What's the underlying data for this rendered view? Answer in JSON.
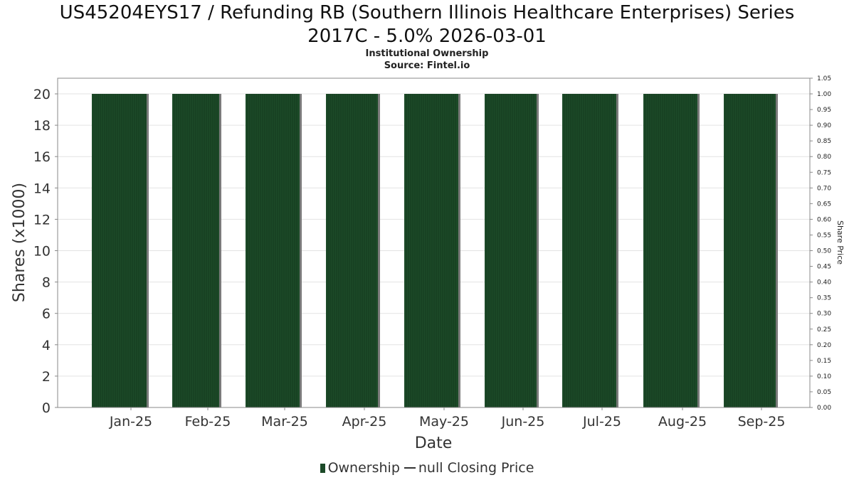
{
  "chart": {
    "title_line1": "US45204EYS17 / Refunding RB (Southern Illinois Healthcare Enterprises) Series",
    "title_line2": "2017C - 5.0% 2026-03-01",
    "subtitle_line1": "Institutional Ownership",
    "subtitle_line2": "Source: Fintel.io"
  },
  "legend": {
    "ownership_label": "Ownership",
    "price_label": "null Closing Price"
  },
  "colors": {
    "bar": "#1c4a28",
    "bar_edge": "#7a7a7a",
    "grid": "#e3e3e3",
    "axis": "#888888"
  },
  "chart_data": {
    "type": "bar",
    "title": "US45204EYS17 / Refunding RB (Southern Illinois Healthcare Enterprises) Series 2017C - 5.0% 2026-03-01",
    "subtitle": "Institutional Ownership",
    "xlabel": "Date",
    "ylabel": "Shares (x1000)",
    "y2label": "Share Price",
    "categories": [
      "Jan-25",
      "Feb-25",
      "Mar-25",
      "Apr-25",
      "May-25",
      "Jun-25",
      "Jul-25",
      "Aug-25",
      "Sep-25"
    ],
    "series": [
      {
        "name": "Ownership",
        "values": [
          20,
          20,
          20,
          20,
          20,
          20,
          20,
          20,
          20
        ]
      }
    ],
    "ylim": [
      0,
      21
    ],
    "yticks": [
      "0",
      "2",
      "4",
      "6",
      "8",
      "10",
      "12",
      "14",
      "16",
      "18",
      "20"
    ],
    "y2lim": [
      0,
      1.05
    ],
    "y2ticks": [
      "0.00",
      "0.05",
      "0.10",
      "0.15",
      "0.20",
      "0.25",
      "0.30",
      "0.35",
      "0.40",
      "0.45",
      "0.50",
      "0.55",
      "0.60",
      "0.65",
      "0.70",
      "0.75",
      "0.80",
      "0.85",
      "0.90",
      "0.95",
      "1.00",
      "1.05"
    ],
    "grid": true,
    "legend_position": "bottom"
  }
}
